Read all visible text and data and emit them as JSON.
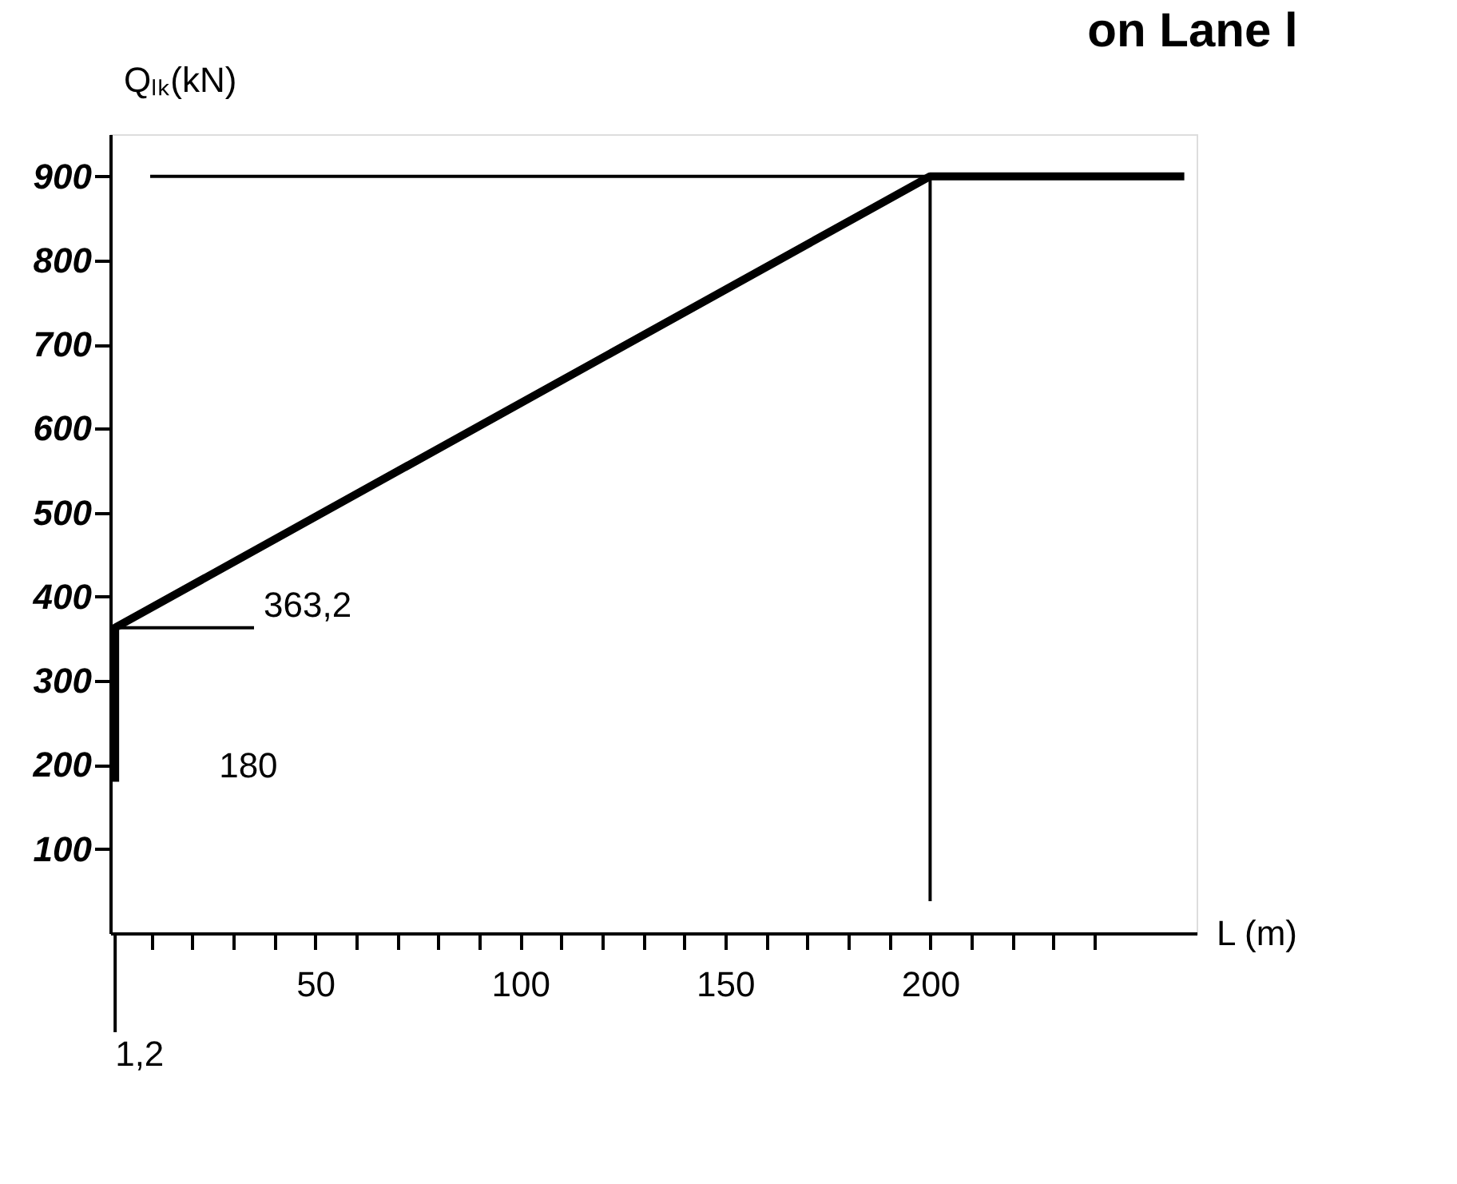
{
  "chart_data": {
    "type": "line",
    "title": "on Lane l",
    "xlabel": "L (m)",
    "ylabel": "Qₗₖ(kN)",
    "series": [
      {
        "color": "#000000",
        "x": [
          1.2,
          1.2,
          200,
          262
        ],
        "values": [
          180,
          363.2,
          900,
          900
        ]
      }
    ],
    "xlim": [
      0,
      265
    ],
    "ylim": [
      0,
      950
    ],
    "xticks": [
      {
        "value": 10,
        "label": null
      },
      {
        "value": 20,
        "label": null
      },
      {
        "value": 30,
        "label": null
      },
      {
        "value": 40,
        "label": null
      },
      50,
      {
        "value": 60,
        "label": null
      },
      {
        "value": 70,
        "label": null
      },
      {
        "value": 80,
        "label": null
      },
      {
        "value": 90,
        "label": null
      },
      100,
      {
        "value": 110,
        "label": null
      },
      {
        "value": 120,
        "label": null
      },
      {
        "value": 130,
        "label": null
      },
      {
        "value": 140,
        "label": null
      },
      150,
      {
        "value": 160,
        "label": null
      },
      {
        "value": 170,
        "label": null
      },
      {
        "value": 180,
        "label": null
      },
      {
        "value": 190,
        "label": null
      },
      200,
      {
        "value": 210,
        "label": null
      },
      {
        "value": 220,
        "label": null
      },
      {
        "value": 230,
        "label": null
      },
      {
        "value": 240,
        "label": null
      }
    ],
    "yticks": [
      100,
      200,
      300,
      400,
      500,
      600,
      700,
      800,
      900
    ],
    "ref_lines": [
      {
        "axis": "y",
        "value": 900,
        "label": null
      },
      {
        "axis": "x",
        "value": 200,
        "label": null
      },
      {
        "axis": "y",
        "value": 363.2,
        "label": "363,2"
      },
      {
        "axis": "x",
        "value": 1.2,
        "label": "1,2"
      }
    ],
    "annotations": [
      {
        "text": "180",
        "x": 1.2,
        "y": 180
      }
    ],
    "grid": false,
    "marker": "none",
    "line_style": "solid"
  }
}
